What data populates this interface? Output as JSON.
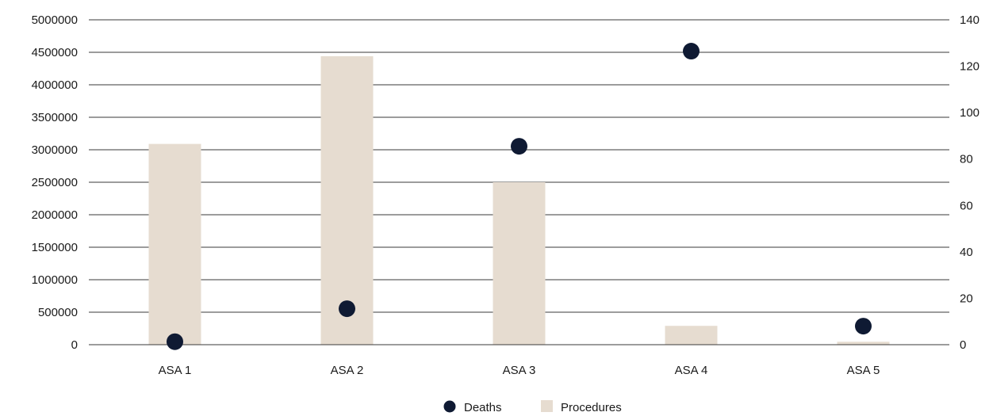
{
  "chart_data": {
    "type": "bar",
    "categories": [
      "ASA 1",
      "ASA 2",
      "ASA 3",
      "ASA 4",
      "ASA 5"
    ],
    "series": [
      {
        "name": "Procedures",
        "type": "bar",
        "axis": "left",
        "color": "#e6dcd0",
        "values": [
          3090000,
          4440000,
          2500000,
          290000,
          45000
        ]
      },
      {
        "name": "Deaths",
        "type": "scatter",
        "axis": "right",
        "color": "#0f1a33",
        "values": [
          1.3,
          15.5,
          85.5,
          126.5,
          8
        ]
      }
    ],
    "y_left": {
      "min": 0,
      "max": 5000000,
      "ticks": [
        "0",
        "500000",
        "1000000",
        "1500000",
        "2000000",
        "2500000",
        "3000000",
        "3500000",
        "4000000",
        "4500000",
        "5000000"
      ]
    },
    "y_right": {
      "min": 0,
      "max": 140,
      "ticks": [
        "0",
        "20",
        "40",
        "60",
        "80",
        "100",
        "120",
        "140"
      ]
    },
    "grid": true,
    "legend": {
      "placement": "bottom",
      "items": [
        {
          "label": "Deaths",
          "marker": "circle"
        },
        {
          "label": "Procedures",
          "marker": "square"
        }
      ]
    }
  }
}
